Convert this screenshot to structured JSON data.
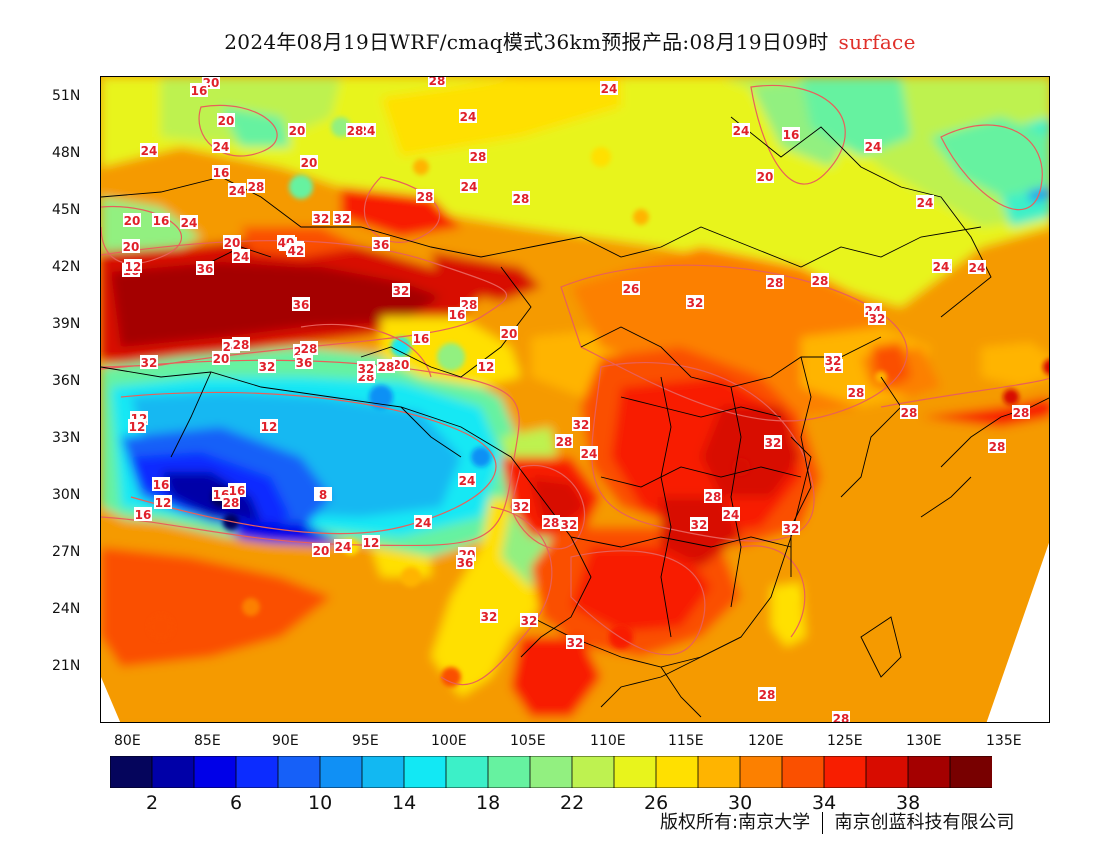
{
  "header": {
    "title": "2024年08月19日WRF/cmaq模式36km预报产品:08月19日09时",
    "subtitle": "surface"
  },
  "axes": {
    "lat_labels": [
      "51N",
      "48N",
      "45N",
      "42N",
      "39N",
      "36N",
      "33N",
      "30N",
      "27N",
      "24N",
      "21N"
    ],
    "lon_labels": [
      "80E",
      "85E",
      "90E",
      "95E",
      "100E",
      "105E",
      "110E",
      "115E",
      "120E",
      "125E",
      "130E",
      "135E"
    ]
  },
  "contour_labels": [
    "20",
    "16",
    "20",
    "24",
    "24",
    "16",
    "20",
    "28",
    "24",
    "24",
    "16",
    "24",
    "20",
    "24",
    "16",
    "24",
    "20",
    "28",
    "24",
    "28",
    "28",
    "24",
    "28",
    "20",
    "24",
    "24",
    "28",
    "20",
    "16",
    "32",
    "32",
    "28",
    "28",
    "20",
    "12",
    "24",
    "40",
    "42",
    "12",
    "36",
    "36",
    "24",
    "32",
    "24",
    "28",
    "24",
    "28",
    "26",
    "32",
    "36",
    "28",
    "16",
    "20",
    "16",
    "12",
    "20",
    "24",
    "28",
    "20",
    "28",
    "32",
    "28",
    "28",
    "28",
    "32",
    "36",
    "32",
    "32",
    "12",
    "12",
    "16",
    "16",
    "12",
    "24",
    "16",
    "8",
    "12",
    "12",
    "16",
    "28",
    "20",
    "24",
    "20",
    "24",
    "32",
    "36",
    "32",
    "28",
    "32",
    "24",
    "28",
    "32",
    "32",
    "32",
    "32",
    "28",
    "24",
    "32",
    "28",
    "32",
    "28",
    "28",
    "28",
    "32",
    "32",
    "32",
    "28",
    "28"
  ],
  "colorbar": {
    "colors": [
      "#05055c",
      "#0000a8",
      "#0000e8",
      "#0c2cff",
      "#1660f8",
      "#1090f5",
      "#12b8f2",
      "#12e8f4",
      "#3cf0c8",
      "#66f2a0",
      "#92f080",
      "#bef250",
      "#e8f41c",
      "#ffe000",
      "#ffb400",
      "#fc8000",
      "#fa5000",
      "#f81e00",
      "#d80c00",
      "#a40000",
      "#780000"
    ],
    "tick_labels": [
      "2",
      "6",
      "10",
      "14",
      "18",
      "22",
      "26",
      "30",
      "34",
      "38"
    ]
  },
  "footer": {
    "copyright": "版权所有:南京大学",
    "company": "南京创蓝科技有限公司"
  }
}
